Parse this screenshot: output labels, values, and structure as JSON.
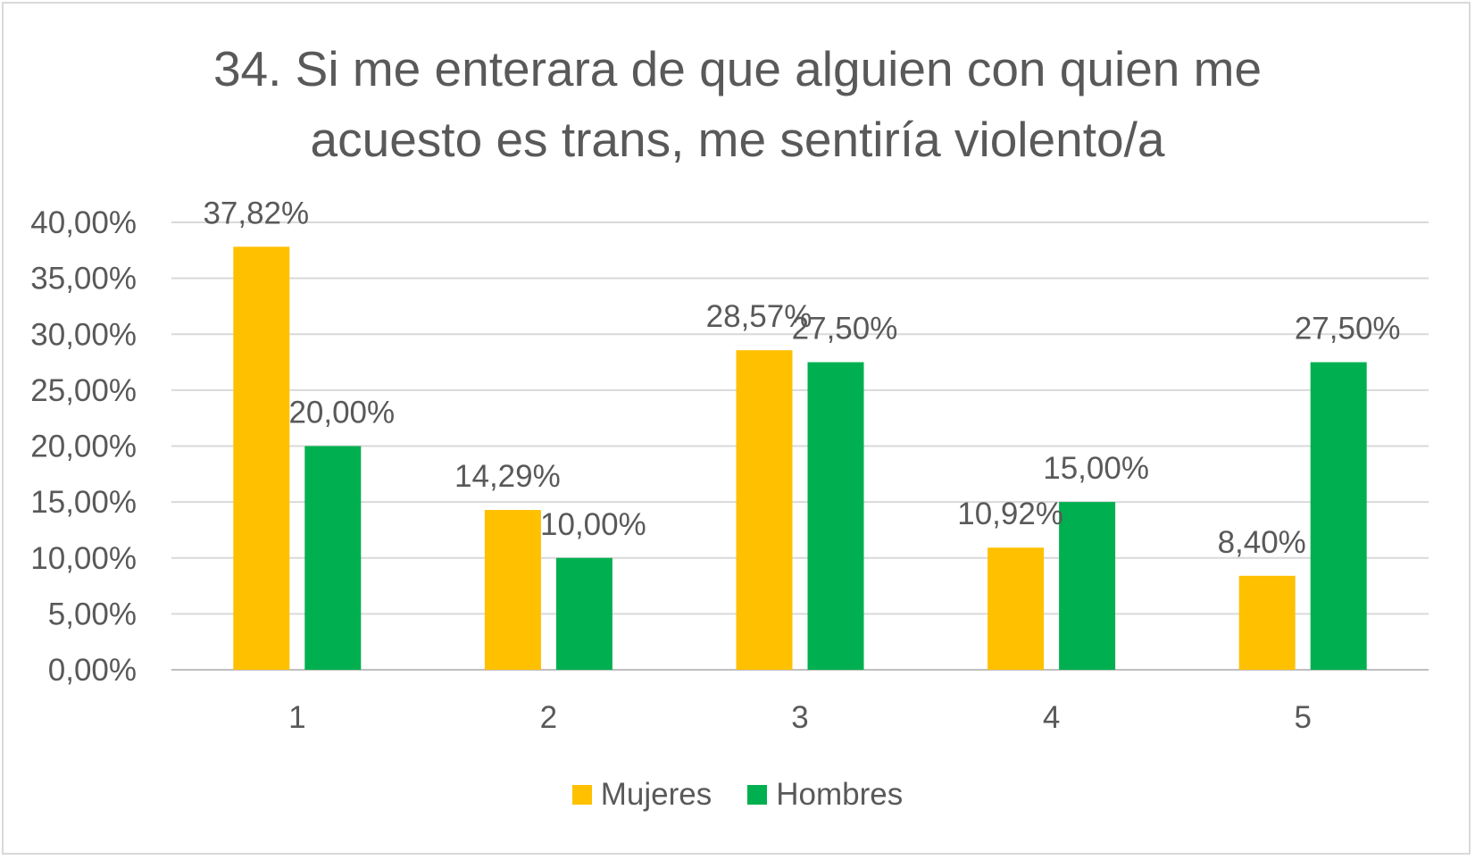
{
  "chart_data": {
    "type": "bar",
    "title_lines": [
      "34. Si me enterara de que alguien con quien me",
      "acuesto es trans, me sentiría violento/a"
    ],
    "categories": [
      "1",
      "2",
      "3",
      "4",
      "5"
    ],
    "series": [
      {
        "name": "Mujeres",
        "color": "#FFC000",
        "values": [
          37.82,
          14.29,
          28.57,
          10.92,
          8.4
        ],
        "labels": [
          "37,82%",
          "14,29%",
          "28,57%",
          "10,92%",
          "8,40%"
        ]
      },
      {
        "name": "Hombres",
        "color": "#00B050",
        "values": [
          20.0,
          10.0,
          27.5,
          15.0,
          27.5
        ],
        "labels": [
          "20,00%",
          "10,00%",
          "27,50%",
          "15,00%",
          "27,50%"
        ]
      }
    ],
    "ylim": [
      0,
      40
    ],
    "yticks": [
      0,
      5,
      10,
      15,
      20,
      25,
      30,
      35,
      40
    ],
    "ytick_labels": [
      "0,00%",
      "5,00%",
      "10,00%",
      "15,00%",
      "20,00%",
      "25,00%",
      "30,00%",
      "35,00%",
      "40,00%"
    ],
    "grid": true,
    "legend": "bottom",
    "xlabel": "",
    "ylabel": ""
  }
}
